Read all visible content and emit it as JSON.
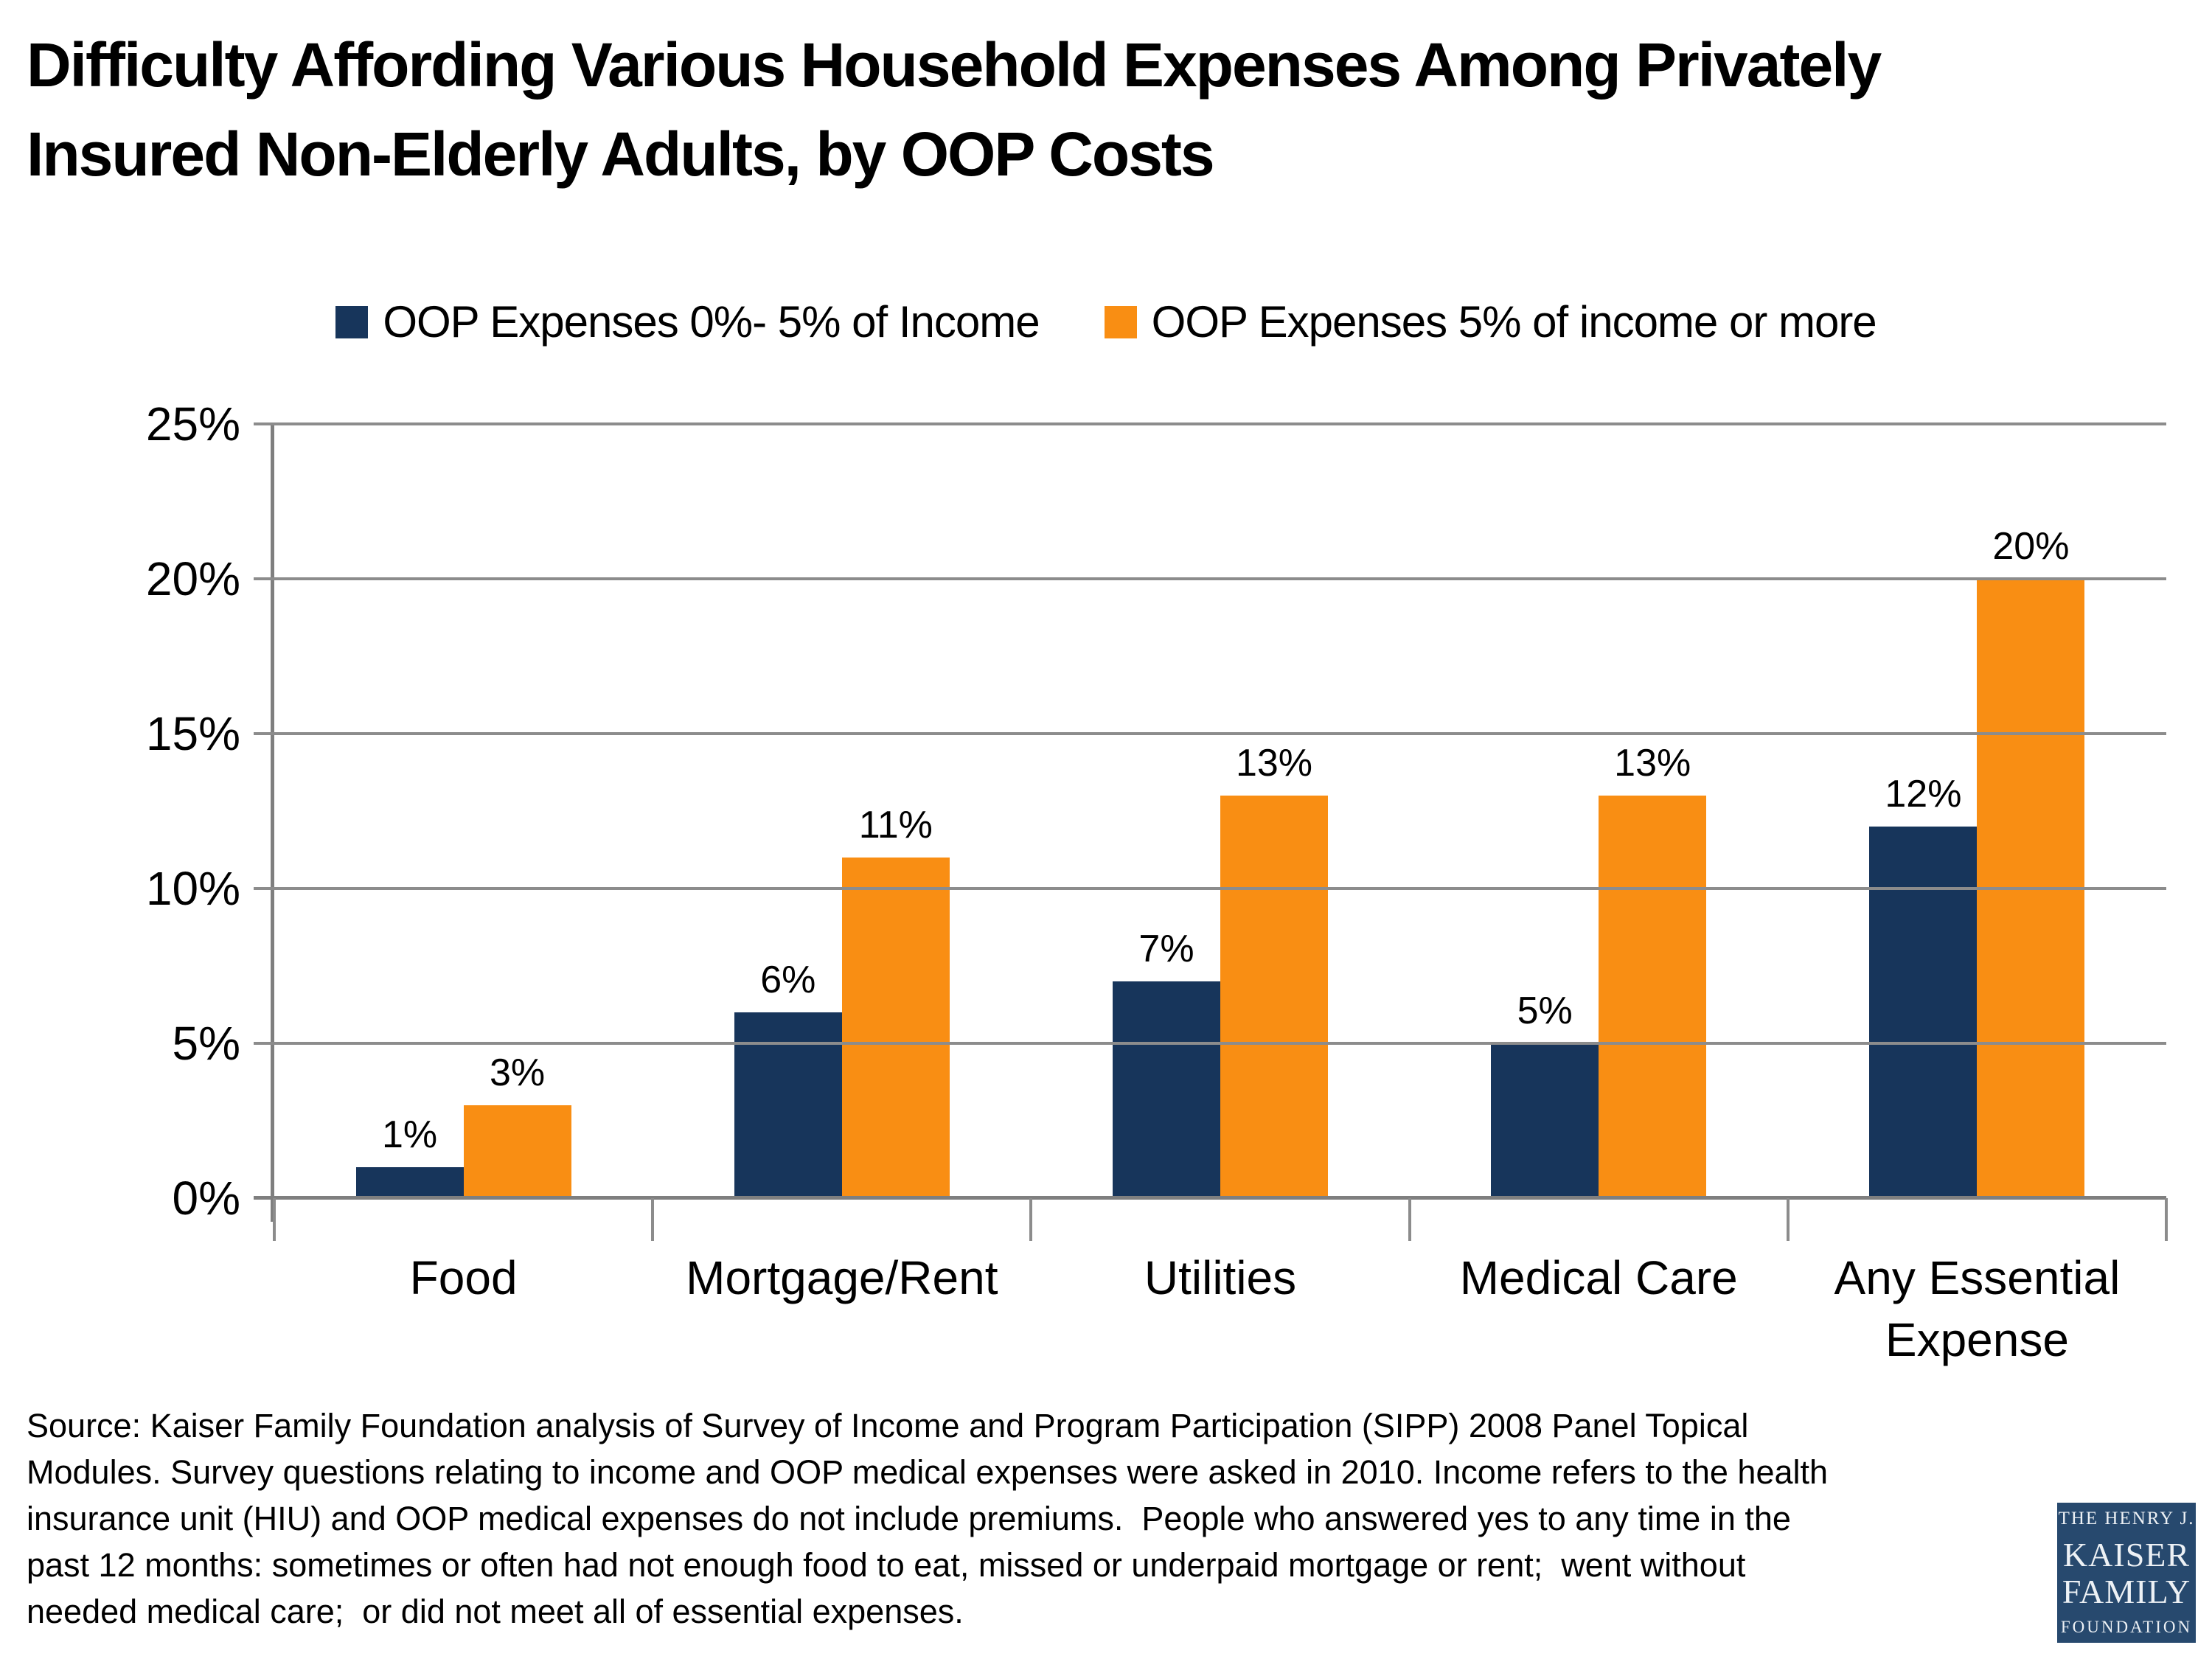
{
  "title": {
    "lines": [
      "Difficulty Affording Various Household Expenses Among Privately",
      "Insured Non-Elderly Adults, by OOP Costs"
    ]
  },
  "chart_data": {
    "type": "bar",
    "title": "Difficulty Affording Various Household Expenses Among Privately Insured Non-Elderly Adults, by OOP Costs",
    "categories": [
      "Food",
      "Mortgage/Rent",
      "Utilities",
      "Medical Care",
      "Any Essential Expense"
    ],
    "series": [
      {
        "name": "OOP Expenses 0%- 5% of Income",
        "color": "#17355B",
        "values": [
          1,
          6,
          7,
          5,
          12
        ],
        "labels": [
          "1%",
          "6%",
          "7%",
          "5%",
          "12%"
        ]
      },
      {
        "name": "OOP Expenses 5% of income or more",
        "color": "#F98E13",
        "values": [
          3,
          11,
          13,
          13,
          20
        ],
        "labels": [
          "3%",
          "11%",
          "13%",
          "13%",
          "20%"
        ]
      }
    ],
    "ylim": [
      0,
      25
    ],
    "ytick_values": [
      0,
      5,
      10,
      15,
      20,
      25
    ],
    "ytick_labels": [
      "0%",
      "5%",
      "10%",
      "15%",
      "20%",
      "25%"
    ],
    "grid": true,
    "legend_position": "top"
  },
  "source": {
    "lines": [
      "Source: Kaiser Family Foundation analysis of Survey of Income and Program Participation (SIPP) 2008 Panel Topical",
      "Modules. Survey questions relating to income and OOP medical expenses were asked in 2010. Income refers to the health",
      "insurance unit (HIU) and OOP medical expenses do not include premiums.  People who answered yes to any time in the",
      "past 12 months: sometimes or often had not enough food to eat, missed or underpaid mortgage or rent;  went without",
      "needed medical care;  or did not meet all of essential expenses."
    ]
  },
  "logo": {
    "top": "THE HENRY J.",
    "name1": "KAISER",
    "name2": "FAMILY",
    "bottom": "FOUNDATION"
  },
  "colors": {
    "grid": "#8C8C8C",
    "axis": "#7F7F7F",
    "series1": "#17355B",
    "series2": "#F98E13",
    "logo_bg": "#27496E"
  }
}
